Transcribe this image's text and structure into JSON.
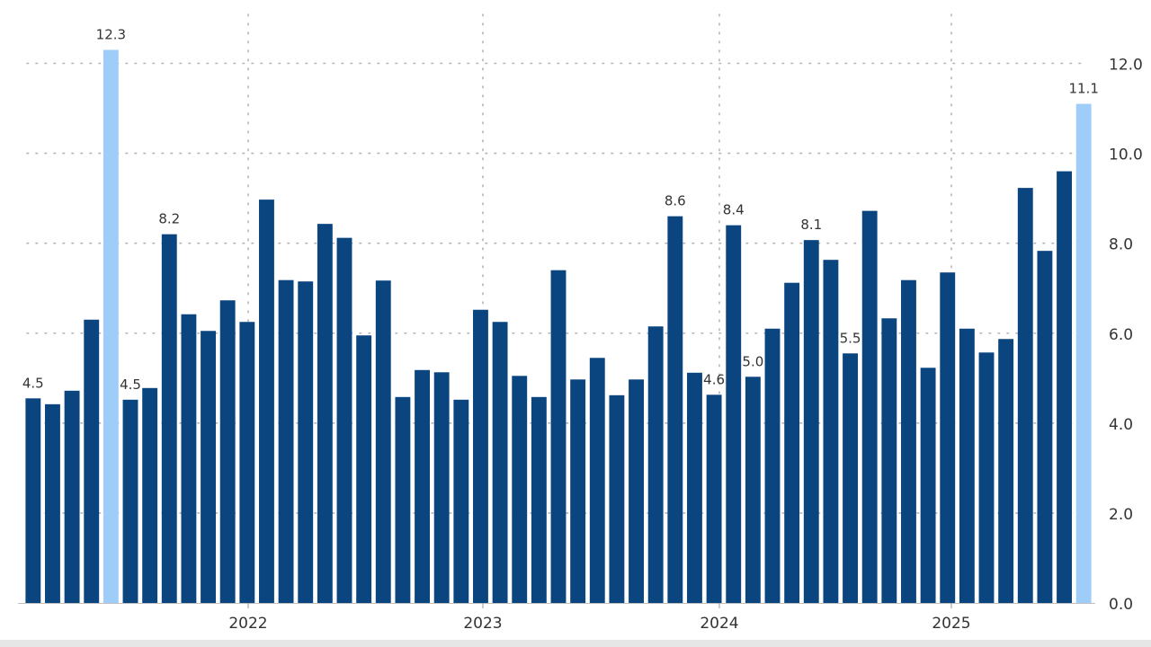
{
  "chart_data": {
    "type": "bar",
    "title": "",
    "xlabel": "",
    "ylabel": "",
    "ylim": [
      0,
      12.0
    ],
    "y_ticks": [
      "0.0",
      "2.0",
      "4.0",
      "6.0",
      "8.0",
      "10.0",
      "12.0"
    ],
    "y_axis_position": "right",
    "grid": "dotted",
    "year_labels": [
      "2022",
      "2023",
      "2024",
      "2025"
    ],
    "values": [
      4.55,
      4.42,
      4.72,
      6.3,
      12.3,
      4.52,
      4.78,
      8.2,
      6.42,
      6.05,
      6.73,
      6.25,
      8.97,
      7.18,
      7.15,
      8.43,
      8.12,
      5.95,
      7.17,
      4.58,
      5.18,
      5.13,
      4.52,
      6.52,
      6.25,
      5.05,
      4.58,
      7.4,
      4.97,
      5.45,
      4.62,
      4.97,
      6.15,
      8.6,
      5.12,
      4.63,
      8.4,
      5.03,
      6.1,
      7.12,
      8.07,
      7.63,
      5.55,
      8.72,
      6.33,
      7.18,
      5.23,
      7.35,
      6.1,
      5.57,
      5.87,
      9.23,
      7.83,
      9.6,
      11.1
    ],
    "highlight_indices": [
      4,
      54
    ],
    "data_labels": [
      {
        "index": 0,
        "text": "4.5"
      },
      {
        "index": 4,
        "text": "12.3"
      },
      {
        "index": 5,
        "text": "4.5"
      },
      {
        "index": 7,
        "text": "8.2"
      },
      {
        "index": 33,
        "text": "8.6"
      },
      {
        "index": 35,
        "text": "4.6"
      },
      {
        "index": 36,
        "text": "8.4"
      },
      {
        "index": 37,
        "text": "5.0"
      },
      {
        "index": 40,
        "text": "8.1"
      },
      {
        "index": 42,
        "text": "5.5"
      },
      {
        "index": 54,
        "text": "11.1"
      }
    ],
    "colors": {
      "bar": "#0b4580",
      "highlight": "#9fcdf9",
      "grid": "#b3b3b3",
      "text": "#333333"
    }
  }
}
